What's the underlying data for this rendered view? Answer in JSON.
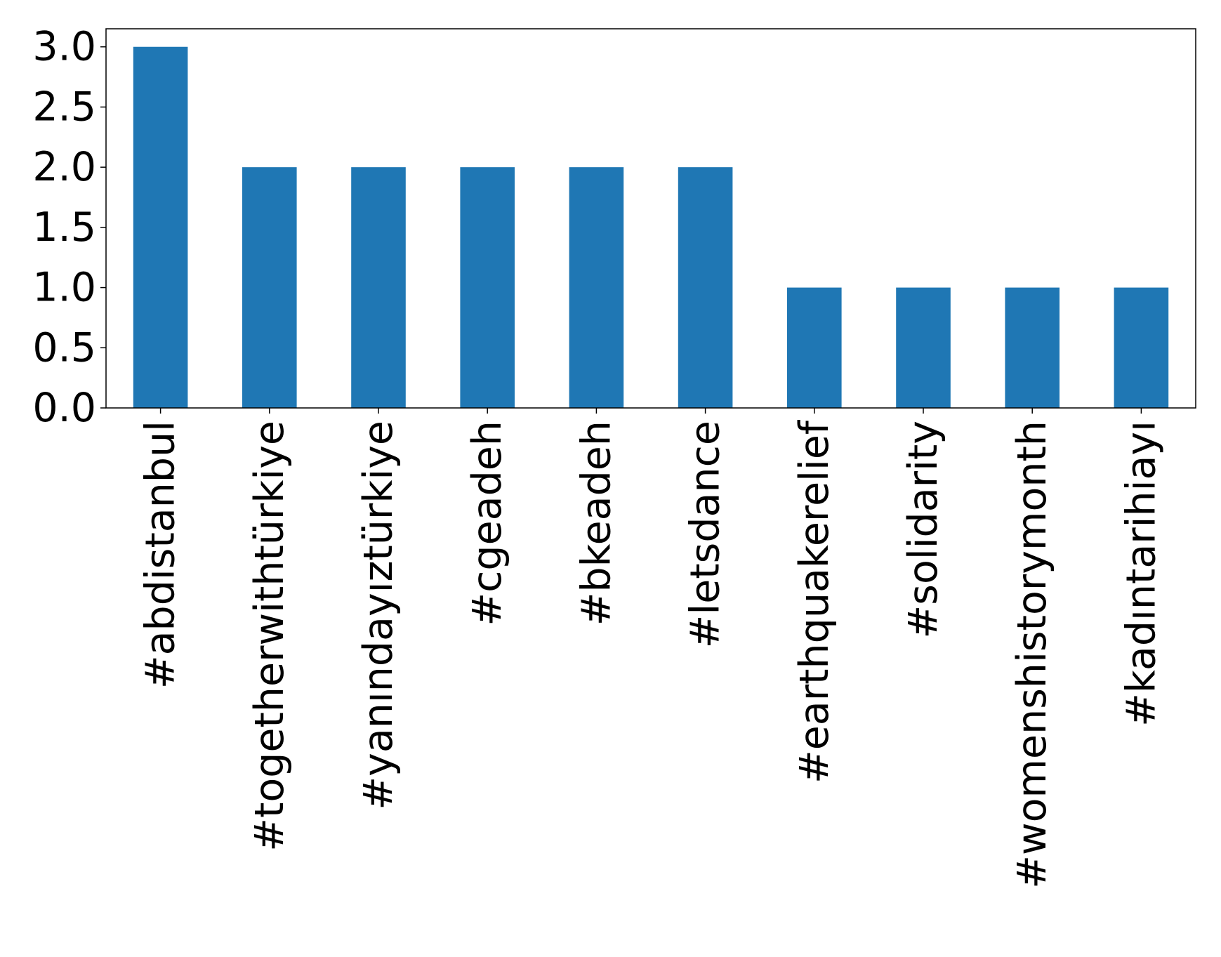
{
  "chart_data": {
    "type": "bar",
    "categories": [
      "#abdistanbul",
      "#togetherwithtürkiye",
      "#yanındayıztürkiye",
      "#cgeadeh",
      "#bkeadeh",
      "#letsdance",
      "#earthquakerelief",
      "#solidarity",
      "#womenshistorymonth",
      "#kadıntarihiayı"
    ],
    "values": [
      3,
      2,
      2,
      2,
      2,
      2,
      1,
      1,
      1,
      1
    ],
    "yticks": [
      "0.0",
      "0.5",
      "1.0",
      "1.5",
      "2.0",
      "2.5",
      "3.0"
    ],
    "title": "",
    "xlabel": "",
    "ylabel": "",
    "ylim": [
      0,
      3.15
    ],
    "grid": false,
    "legend": "none",
    "bar_color": "#1f77b4"
  }
}
